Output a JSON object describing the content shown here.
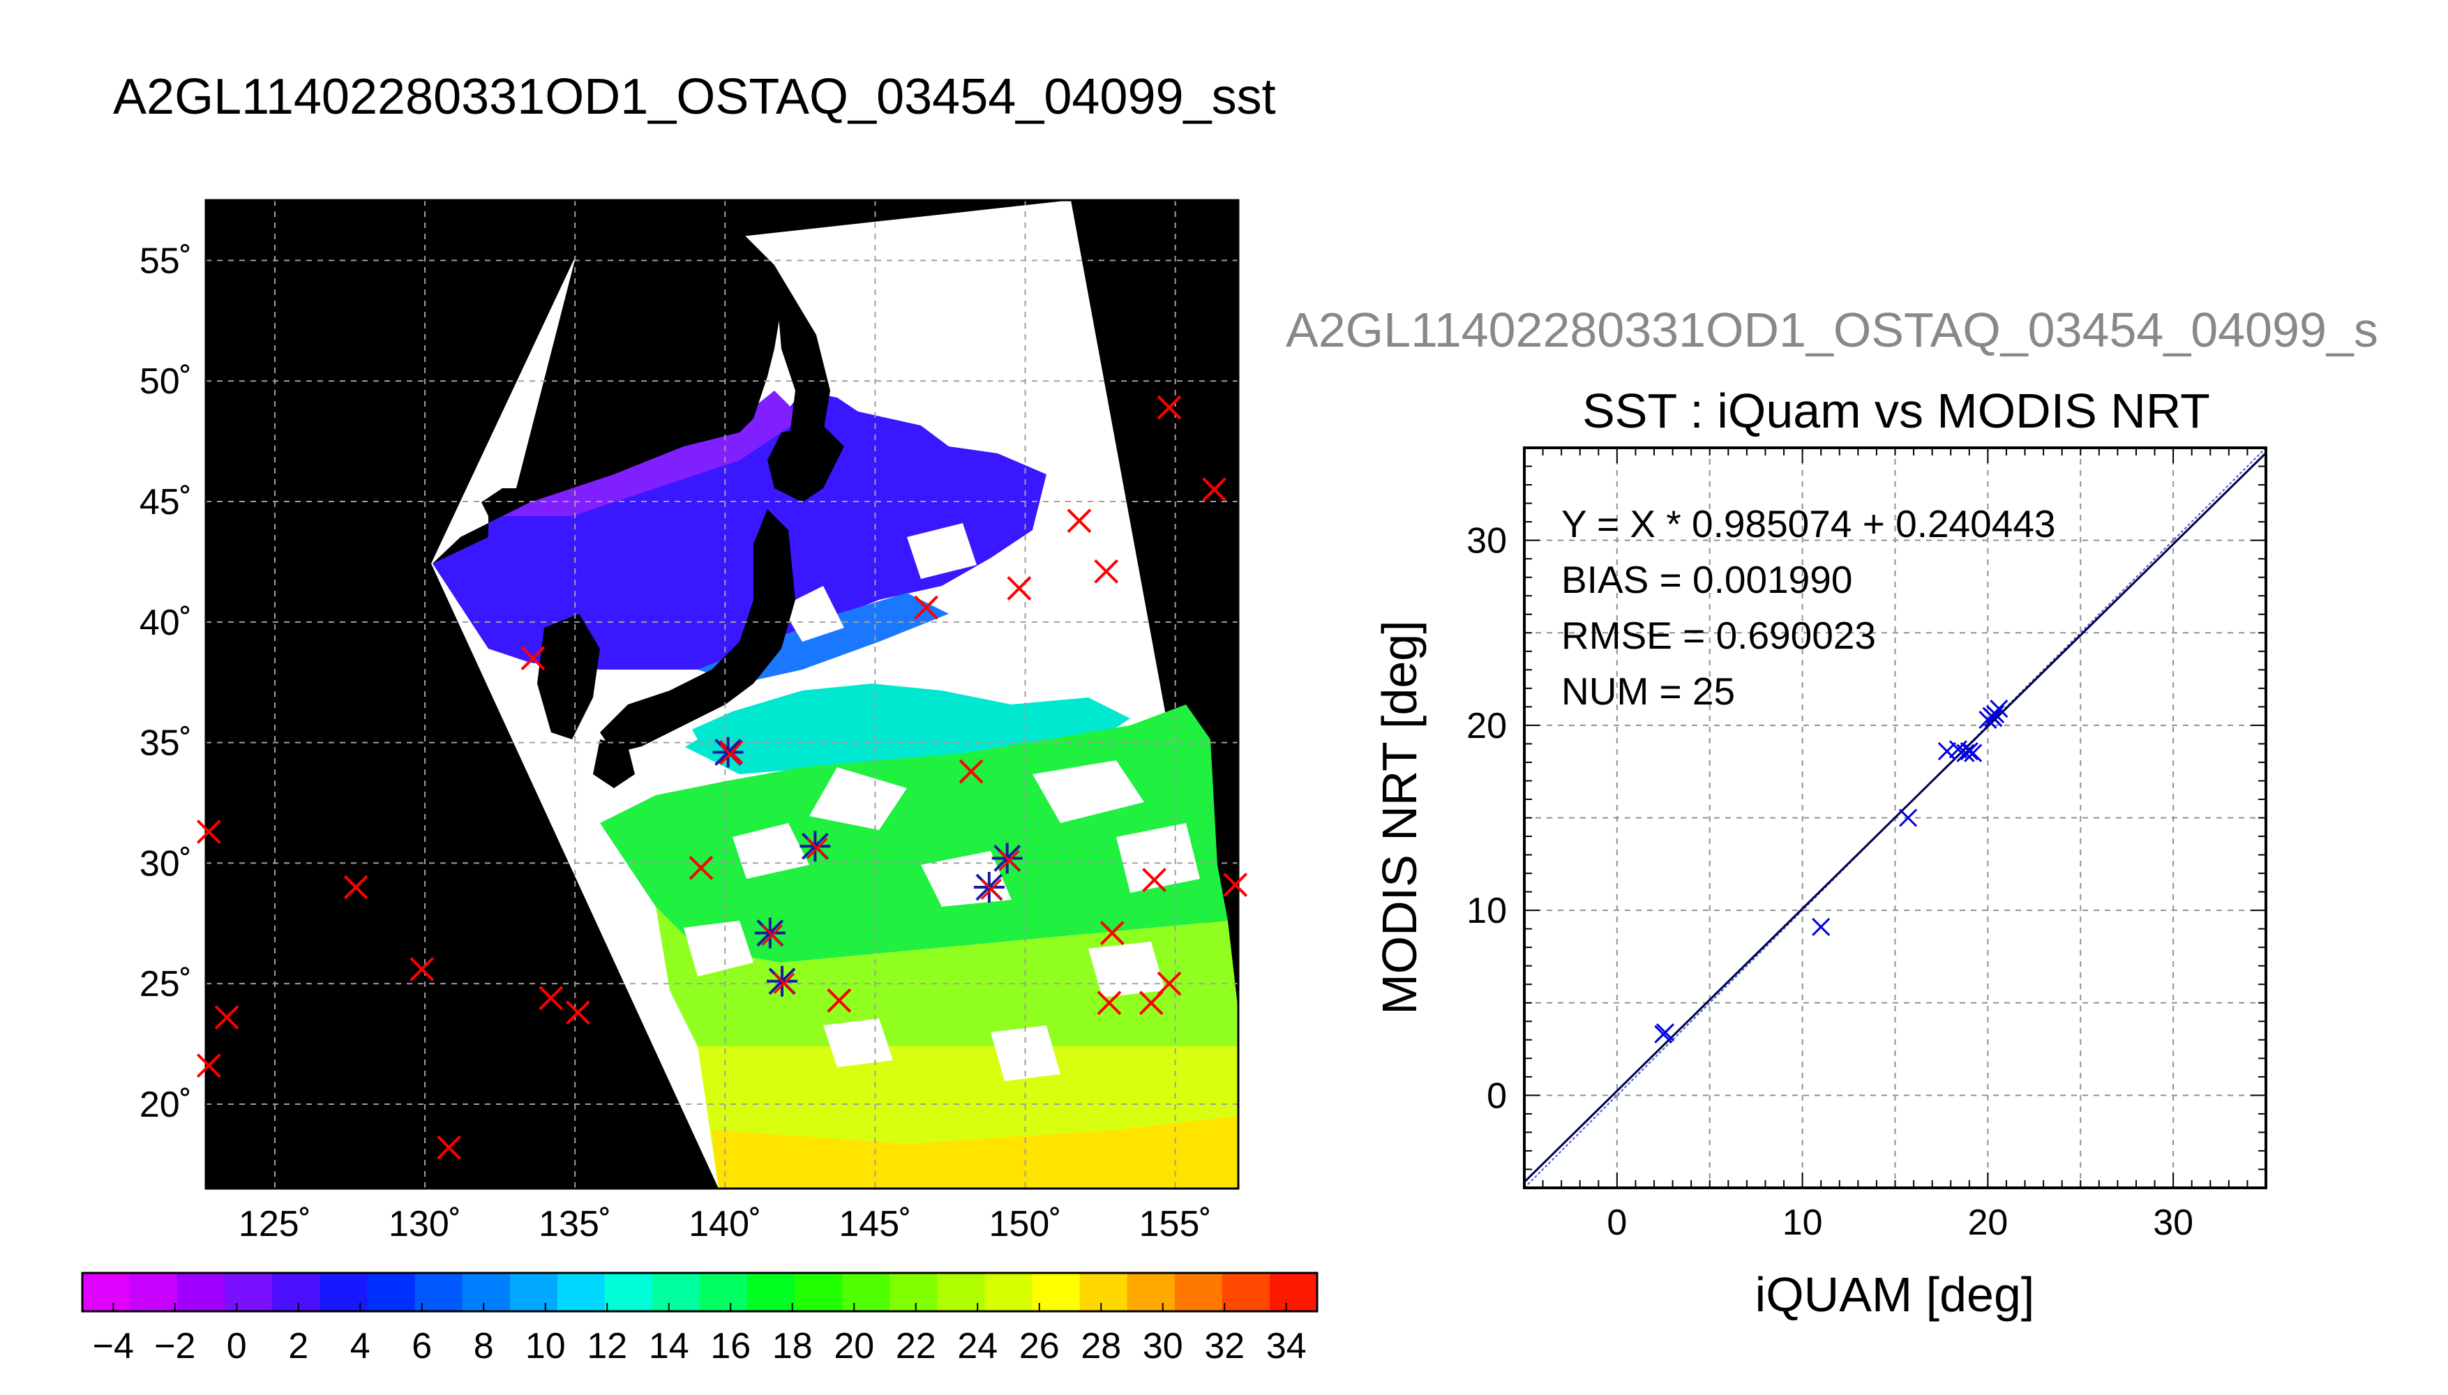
{
  "page_title": "A2GL11402280331OD1_OSTAQ_03454_04099_sst",
  "colors": {
    "map_background": "#000000",
    "cloud_mask": "#ffffff",
    "land": "#000000",
    "grid": "#a0a0a0",
    "matchup_marker": "#ff0000",
    "valid_matchup_marker": "#1a1aa0",
    "scatter_marker": "#0000e0",
    "fit_line": "#000050",
    "text": "#000000",
    "subtitle_text": "#888888"
  },
  "map": {
    "x_ticks": [
      "125˚",
      "130˚",
      "135˚",
      "140˚",
      "145˚",
      "150˚",
      "155˚"
    ],
    "y_ticks": [
      "55˚",
      "50˚",
      "45˚",
      "40˚",
      "35˚",
      "30˚",
      "25˚",
      "20˚"
    ],
    "lon_range": [
      122.7,
      157.1
    ],
    "lat_range": [
      16.5,
      57.5
    ],
    "matchups_red": [
      [
        122.8,
        31.3
      ],
      [
        123.4,
        23.6
      ],
      [
        122.8,
        21.6
      ],
      [
        127.7,
        29.0
      ],
      [
        129.9,
        25.6
      ],
      [
        130.8,
        18.2
      ],
      [
        134.2,
        24.4
      ],
      [
        135.1,
        23.8
      ],
      [
        133.6,
        38.5
      ],
      [
        139.2,
        29.8
      ],
      [
        143.8,
        24.3
      ],
      [
        146.7,
        40.6
      ],
      [
        148.2,
        33.8
      ],
      [
        149.8,
        41.4
      ],
      [
        151.8,
        44.2
      ],
      [
        152.7,
        42.1
      ],
      [
        152.9,
        27.1
      ],
      [
        152.8,
        24.2
      ],
      [
        154.2,
        24.2
      ],
      [
        154.3,
        29.3
      ],
      [
        154.8,
        25.0
      ],
      [
        154.8,
        48.9
      ],
      [
        156.3,
        45.5
      ],
      [
        157.0,
        29.1
      ],
      [
        140.2,
        34.6
      ]
    ],
    "matchups_valid": [
      [
        141.5,
        27.1
      ],
      [
        141.9,
        25.1
      ],
      [
        143.0,
        30.7
      ],
      [
        148.8,
        29.0
      ],
      [
        149.4,
        30.2
      ],
      [
        140.1,
        34.6
      ]
    ]
  },
  "colorbar": {
    "tick_labels": [
      "−4",
      "−2",
      "0",
      "2",
      "4",
      "6",
      "8",
      "10",
      "12",
      "14",
      "16",
      "18",
      "20",
      "22",
      "24",
      "26",
      "28",
      "30",
      "32",
      "34"
    ],
    "range": [
      -5,
      35
    ],
    "colors": [
      "#e000ff",
      "#c800ff",
      "#a000ff",
      "#7a10ff",
      "#4a10ff",
      "#1818ff",
      "#0030ff",
      "#0058ff",
      "#0080ff",
      "#00a8ff",
      "#00d8ff",
      "#00ffd8",
      "#00ffa0",
      "#00ff60",
      "#00ff20",
      "#20ff00",
      "#50ff00",
      "#80ff00",
      "#b0ff00",
      "#d8ff00",
      "#ffff00",
      "#ffd800",
      "#ffa800",
      "#ff7800",
      "#ff4800",
      "#ff1800"
    ]
  },
  "scatter": {
    "subtitle": "A2GL11402280331OD1_OSTAQ_03454_04099_s",
    "title": "SST : iQuam vs MODIS NRT",
    "stats": [
      "Y = X * 0.985074 + 0.240443",
      "BIAS = 0.001990",
      "RMSE = 0.690023",
      "NUM = 25"
    ]
  },
  "chart_data": {
    "type": "scatter",
    "title": "SST : iQuam vs MODIS NRT",
    "xlabel": "iQUAM [deg]",
    "ylabel": "MODIS NRT [deg]",
    "xlim": [
      -5,
      35
    ],
    "ylim": [
      -5,
      35
    ],
    "x_ticks": [
      0,
      10,
      20,
      30
    ],
    "y_ticks": [
      0,
      10,
      20,
      30
    ],
    "grid": true,
    "points": [
      [
        2.5,
        3.3
      ],
      [
        2.6,
        3.4
      ],
      [
        11.0,
        9.1
      ],
      [
        15.7,
        15.0
      ],
      [
        17.8,
        18.6
      ],
      [
        18.4,
        18.7
      ],
      [
        18.8,
        18.5
      ],
      [
        19.0,
        18.6
      ],
      [
        19.2,
        18.5
      ],
      [
        20.0,
        20.3
      ],
      [
        20.2,
        20.5
      ],
      [
        20.4,
        20.6
      ],
      [
        20.6,
        20.9
      ],
      [
        20.3,
        20.4
      ]
    ],
    "fit": {
      "slope": 0.985074,
      "intercept": 0.240443
    },
    "identity_line": true
  }
}
